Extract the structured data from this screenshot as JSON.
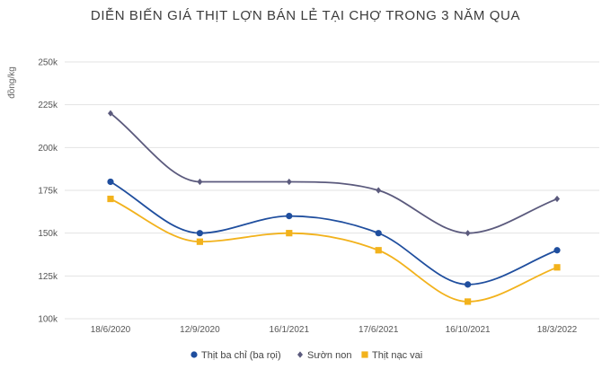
{
  "chart_data": {
    "type": "line",
    "title": "DIỄN BIẾN GIÁ THỊT LỢN BÁN LẺ TẠI CHỢ TRONG 3 NĂM QUA",
    "xlabel": "",
    "ylabel": "đồng/kg",
    "categories": [
      "18/6/2020",
      "12/9/2020",
      "16/1/2021",
      "17/6/2021",
      "16/10/2021",
      "18/3/2022"
    ],
    "y_ticks": [
      "100k",
      "125k",
      "150k",
      "175k",
      "200k",
      "225k",
      "250k"
    ],
    "ylim": [
      100000,
      250000
    ],
    "grid": true,
    "legend_position": "bottom",
    "series": [
      {
        "name": "Thịt ba chỉ (ba rọi)",
        "color": "#1f4e9e",
        "marker": "circle",
        "values": [
          180000,
          150000,
          160000,
          150000,
          120000,
          140000
        ]
      },
      {
        "name": "Sườn non",
        "color": "#5b5a7d",
        "marker": "diamond",
        "values": [
          220000,
          180000,
          180000,
          175000,
          150000,
          170000
        ]
      },
      {
        "name": "Thịt nạc vai",
        "color": "#f2b21c",
        "marker": "square",
        "values": [
          170000,
          145000,
          150000,
          140000,
          110000,
          130000
        ]
      }
    ]
  }
}
